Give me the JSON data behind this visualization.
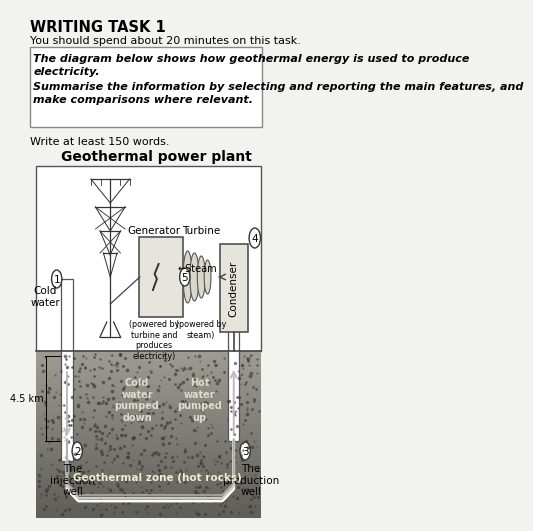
{
  "title_bold": "WRITING TASK 1",
  "subtitle": "You should spend about 20 minutes on this task.",
  "box_line1": "The diagram below shows how geothermal energy is used to produce",
  "box_line2": "electricity.",
  "box_line3": "Summarise the information by selecting and reporting the main features, and",
  "box_line4": "make comparisons where relevant.",
  "write_note": "Write at least 150 words.",
  "diagram_title": "Geothermal power plant",
  "geo_zone_label": "Geothermal zone (hot rocks)",
  "cold_water_label": "Cold\nwater\npumped\ndown",
  "hot_water_label": "Hot\nwater\npumped\nup",
  "steam_label": "←Steam",
  "generator_label": "Generator",
  "turbine_label": "Turbine",
  "condenser_label": "Condenser",
  "gen_sublabel": "(powered by\nturbine and\nproduces\nelectricity)",
  "turb_sublabel": "(powered by\nsteam)",
  "cold_water_top": "Cold\nwater",
  "inj_well": "The\ninjection\nwell",
  "prod_well": "The\nproduction\nwell",
  "km_label": "4.5 km",
  "bg": "#f2f2ee"
}
